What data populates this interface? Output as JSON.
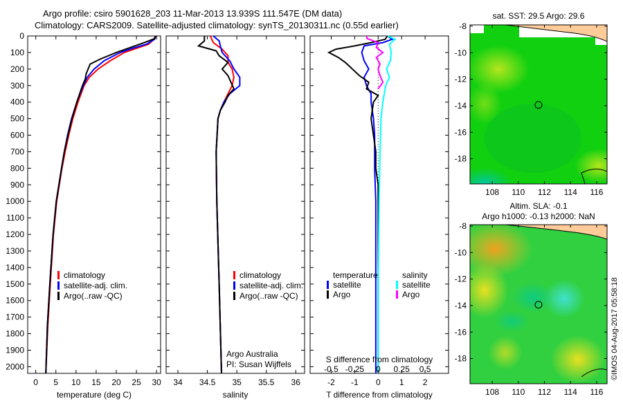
{
  "header": {
    "line1": "Argo profile: csiro 5901628_203 11-Mar-2013 13.939S 111.547E (DM data)",
    "line2": "Climatology: CARS2009. Satellite-adjusted climatology: synTS_20130311.nc (0.55d earlier)"
  },
  "stamp": "©IMOS 04-Aug-2017 05:58:18",
  "colors": {
    "climatology": "#ff0000",
    "satellite": "#0000ff",
    "argo": "#000000",
    "sal_satellite": "#00ffff",
    "sal_argo": "#ff00ff",
    "land": "#ffcc99"
  },
  "chart_data": [
    {
      "type": "line",
      "id": "temperature",
      "xlabel": "temperature (deg C)",
      "xlim": [
        -2,
        31
      ],
      "ylim": [
        2040,
        0
      ],
      "xticks": [
        0,
        5,
        10,
        15,
        20,
        25,
        30
      ],
      "yticks": [
        0,
        100,
        200,
        300,
        400,
        500,
        600,
        700,
        800,
        900,
        1000,
        1100,
        1200,
        1300,
        1400,
        1500,
        1600,
        1700,
        1800,
        1900,
        2000
      ],
      "legend": [
        "climatology",
        "satellite-adj. clim.",
        "Argo(..raw -QC)"
      ],
      "series": [
        {
          "name": "climatology",
          "color": "#ff0000",
          "depth": [
            0,
            20,
            50,
            75,
            100,
            150,
            200,
            250,
            300,
            400,
            500,
            600,
            700,
            800,
            1000,
            1200,
            1500,
            1750,
            2040
          ],
          "values": [
            29.6,
            29.4,
            28,
            25,
            22,
            18.5,
            15.5,
            13.3,
            12,
            10.5,
            9.2,
            8.2,
            7.3,
            6.5,
            5.2,
            4.4,
            3.6,
            3.0,
            2.5
          ]
        },
        {
          "name": "satellite-adj. clim.",
          "color": "#0000ff",
          "depth": [
            0,
            20,
            50,
            75,
            100,
            150,
            200,
            250,
            300,
            400,
            500,
            600,
            700,
            800,
            1000,
            1200,
            1500,
            1750,
            2040
          ],
          "values": [
            29.7,
            29.5,
            27.5,
            24,
            21,
            17,
            14.5,
            12.8,
            11.8,
            10.2,
            8.9,
            7.9,
            7.1,
            6.4,
            5.1,
            4.3,
            3.5,
            2.9,
            2.5
          ]
        },
        {
          "name": "Argo(..raw -QC)",
          "color": "#000000",
          "depth": [
            0,
            15,
            40,
            70,
            100,
            140,
            170,
            200,
            230,
            260,
            300,
            400,
            500,
            600,
            700,
            800,
            1000,
            1200,
            1500,
            1750,
            2040
          ],
          "values": [
            29.8,
            29.6,
            27,
            23.5,
            20,
            16,
            13.5,
            13,
            12.5,
            12.3,
            11.6,
            10.2,
            9,
            8,
            7.1,
            6.4,
            5.1,
            4.3,
            3.5,
            2.9,
            2.5
          ]
        }
      ]
    },
    {
      "type": "line",
      "id": "salinity",
      "xlabel": "salinity",
      "xlim": [
        33.8,
        36.15
      ],
      "ylim": [
        2040,
        0
      ],
      "xticks": [
        34,
        34.5,
        35,
        35.5,
        36
      ],
      "legend": [
        "climatology",
        "satellite-adj. clim.",
        "Argo(..raw -QC)"
      ],
      "annotation": [
        "Argo Australia",
        "PI: Susan Wijffels"
      ],
      "series": [
        {
          "name": "climatology",
          "color": "#ff0000",
          "depth": [
            0,
            40,
            80,
            120,
            160,
            200,
            250,
            300,
            350,
            400,
            450,
            500,
            700,
            1000,
            1500,
            2040
          ],
          "values": [
            34.55,
            34.6,
            34.75,
            34.85,
            34.85,
            34.92,
            34.95,
            34.92,
            34.85,
            34.78,
            34.72,
            34.68,
            34.65,
            34.66,
            34.7,
            34.74
          ]
        },
        {
          "name": "satellite-adj. clim.",
          "color": "#0000ff",
          "depth": [
            0,
            30,
            60,
            100,
            150,
            200,
            250,
            300,
            350,
            400,
            450,
            500,
            700,
            1000,
            1500,
            2040
          ],
          "values": [
            34.6,
            34.7,
            34.72,
            34.75,
            34.88,
            34.95,
            35.05,
            35.05,
            34.88,
            34.78,
            34.72,
            34.68,
            34.65,
            34.66,
            34.7,
            34.74
          ]
        },
        {
          "name": "Argo(..raw -QC)",
          "color": "#000000",
          "depth": [
            0,
            30,
            60,
            90,
            120,
            160,
            200,
            240,
            280,
            320,
            360,
            400,
            450,
            500,
            700,
            1000,
            1500,
            2040
          ],
          "values": [
            34.45,
            34.45,
            34.35,
            34.65,
            34.7,
            34.85,
            34.75,
            34.85,
            34.9,
            34.95,
            34.85,
            34.8,
            34.72,
            34.68,
            34.65,
            34.66,
            34.7,
            34.74
          ]
        }
      ]
    },
    {
      "type": "line",
      "id": "differences",
      "xlabel": "T difference from climatology",
      "xlabel2": "S difference from climatology",
      "t_xlim": [
        -2.9,
        3.0
      ],
      "s_xlim": [
        -0.725,
        0.75
      ],
      "ylim": [
        2040,
        0
      ],
      "t_xticks": [
        -2,
        -1,
        0,
        1,
        2
      ],
      "s_xticks": [
        -0.5,
        -0.25,
        0,
        0.25,
        0.5
      ],
      "s_xtick_labels": [
        "-0.5",
        "-0.25",
        "0",
        "0.25",
        "0.5"
      ],
      "legend": {
        "temperature": "temperature",
        "salinity": "salinity",
        "satellite": "satellite",
        "argo": "Argo"
      },
      "series": [
        {
          "name": "T satellite",
          "axis": "t",
          "color": "#0000ff",
          "depth": [
            0,
            20,
            40,
            60,
            100,
            150,
            200,
            250,
            300,
            350,
            400,
            500,
            600,
            800,
            1000,
            1500,
            2040
          ],
          "values": [
            0.4,
            0.6,
            0.2,
            -0.6,
            -0.7,
            -0.6,
            -0.4,
            -0.6,
            -0.5,
            -0.3,
            -0.3,
            -0.2,
            -0.15,
            -0.15,
            -0.1,
            -0.1,
            -0.1
          ]
        },
        {
          "name": "T Argo",
          "axis": "t",
          "color": "#000000",
          "depth": [
            0,
            20,
            40,
            60,
            80,
            100,
            130,
            160,
            200,
            240,
            280,
            320,
            360,
            400,
            500,
            600,
            700,
            800,
            900,
            1000,
            1500,
            2040
          ],
          "values": [
            0.4,
            0.3,
            -0.3,
            -1.0,
            -1.8,
            -2.1,
            -1.7,
            -1.4,
            -1.1,
            -0.8,
            -0.4,
            -0.5,
            0.0,
            -0.2,
            -0.3,
            -0.2,
            -0.1,
            -0.1,
            0.0,
            0.0,
            0.0,
            0.0
          ]
        },
        {
          "name": "S satellite",
          "axis": "s",
          "color": "#00ffff",
          "depth": [
            0,
            20,
            50,
            100,
            150,
            200,
            250,
            300,
            400,
            500,
            700,
            1000,
            1500,
            2040
          ],
          "values": [
            0.1,
            0.18,
            0.12,
            0.14,
            0.13,
            0.09,
            0.12,
            0.08,
            0.05,
            0.03,
            0.02,
            0.01,
            0.0,
            0.0
          ]
        },
        {
          "name": "S Argo",
          "axis": "s",
          "color": "#ff00ff",
          "depth": [
            0,
            15,
            40,
            70,
            100,
            130,
            170,
            200,
            240,
            280,
            320
          ],
          "values": [
            -0.12,
            -0.12,
            0.0,
            -0.02,
            0.05,
            -0.02,
            0.02,
            0.0,
            0.02,
            0.05,
            0.0
          ]
        }
      ]
    },
    {
      "type": "heatmap",
      "id": "sst-map",
      "title": "sat. SST: 29.5 Argo: 29.6",
      "xlim": [
        106.3,
        116.8
      ],
      "ylim": [
        -19.9,
        -7.9
      ],
      "xticks": [
        108,
        110,
        112,
        114,
        116
      ],
      "yticks": [
        -8,
        -10,
        -12,
        -14,
        -16,
        -18
      ],
      "argo_position": [
        111.547,
        -13.939
      ]
    },
    {
      "type": "heatmap",
      "id": "sla-map",
      "title": "Altim. SLA: -0.1",
      "subtitle": "Argo h1000: -0.13 h2000: NaN",
      "xlim": [
        106.3,
        116.8
      ],
      "ylim": [
        -19.9,
        -7.9
      ],
      "xticks": [
        108,
        110,
        112,
        114,
        116
      ],
      "yticks": [
        -8,
        -10,
        -12,
        -14,
        -16,
        -18
      ],
      "argo_position": [
        111.547,
        -13.939
      ]
    }
  ]
}
